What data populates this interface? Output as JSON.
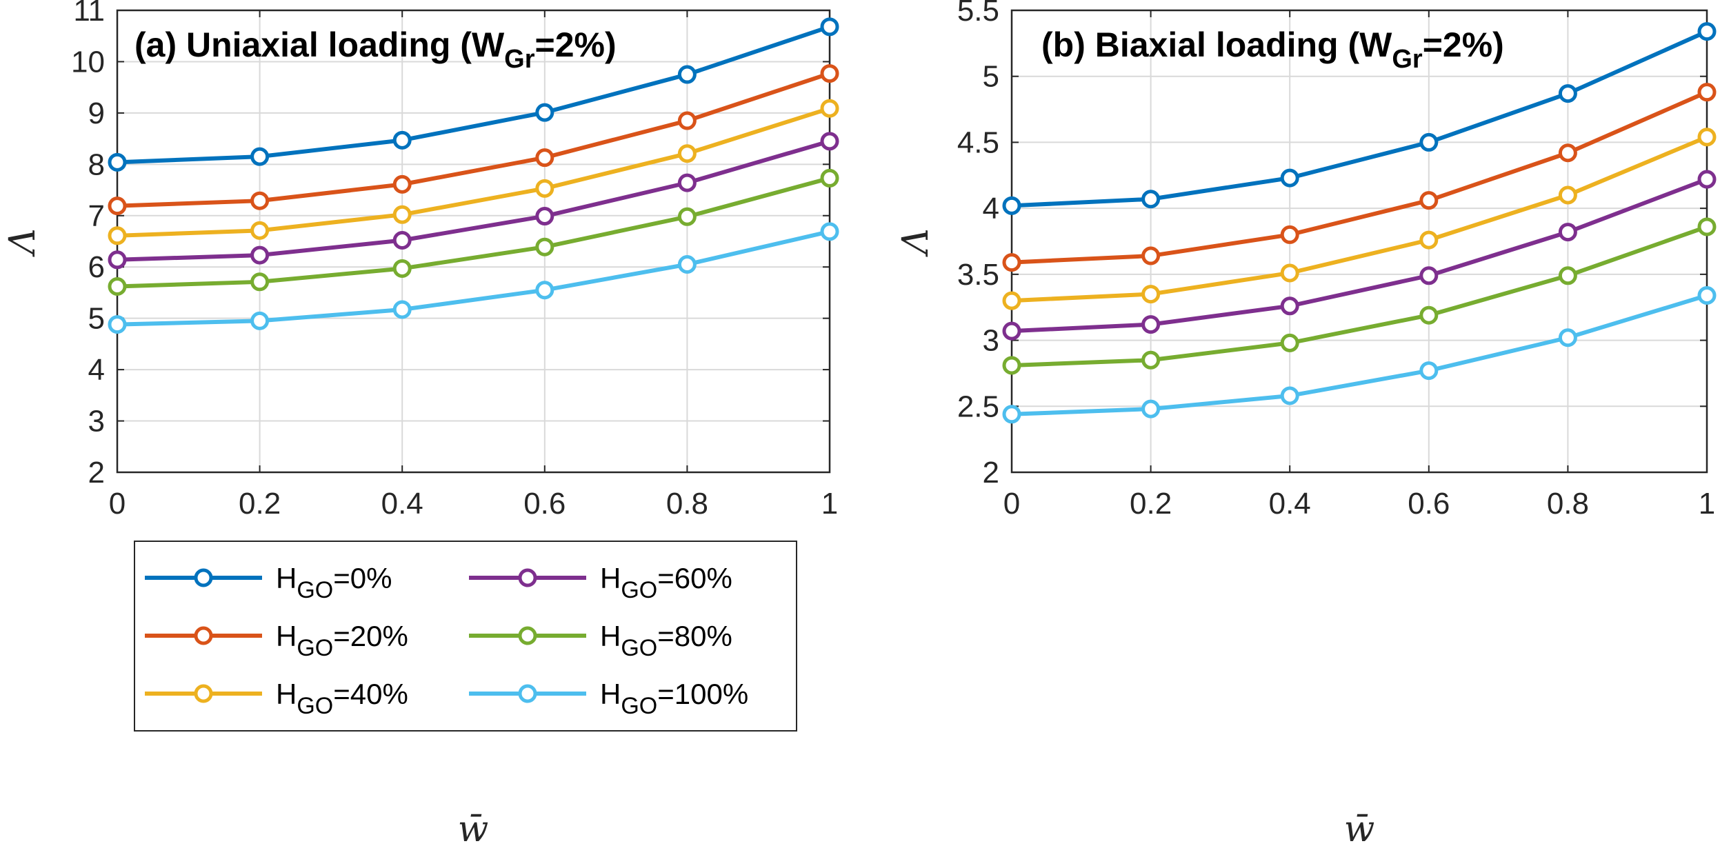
{
  "chart_data": [
    {
      "type": "line",
      "title": "(a) Uniaxial loading (W",
      "title_sub": "Gr",
      "title_end": "=2%)",
      "xlabel": "w̄",
      "ylabel": "Λ",
      "xlim": [
        0,
        1
      ],
      "ylim": [
        2,
        11
      ],
      "xticks": [
        0,
        0.2,
        0.4,
        0.6,
        0.8,
        1
      ],
      "xtick_labels": [
        "0",
        "0.2",
        "0.4",
        "0.6",
        "0.8",
        "1"
      ],
      "yticks": [
        2,
        3,
        4,
        5,
        6,
        7,
        8,
        9,
        10,
        11
      ],
      "ytick_labels": [
        "2",
        "3",
        "4",
        "5",
        "6",
        "7",
        "8",
        "9",
        "10",
        "11"
      ],
      "grid": true,
      "x": [
        0,
        0.2,
        0.4,
        0.6,
        0.8,
        1
      ],
      "series": [
        {
          "name": "H_GO=0%",
          "values": [
            8.04,
            8.15,
            8.47,
            9.01,
            9.75,
            10.68
          ]
        },
        {
          "name": "H_GO=20%",
          "values": [
            7.19,
            7.29,
            7.61,
            8.13,
            8.85,
            9.77
          ]
        },
        {
          "name": "H_GO=40%",
          "values": [
            6.61,
            6.71,
            7.02,
            7.53,
            8.21,
            9.09
          ]
        },
        {
          "name": "H_GO=60%",
          "values": [
            6.14,
            6.23,
            6.52,
            6.99,
            7.64,
            8.45
          ]
        },
        {
          "name": "H_GO=80%",
          "values": [
            5.62,
            5.71,
            5.97,
            6.39,
            6.98,
            7.73
          ]
        },
        {
          "name": "H_GO=100%",
          "values": [
            4.88,
            4.95,
            5.17,
            5.55,
            6.05,
            6.69
          ]
        }
      ],
      "legend": {
        "position": "bottom",
        "entries": [
          {
            "pre": "H",
            "sub": "GO",
            "post": "=0%"
          },
          {
            "pre": "H",
            "sub": "GO",
            "post": "=60%"
          },
          {
            "pre": "H",
            "sub": "GO",
            "post": "=20%"
          },
          {
            "pre": "H",
            "sub": "GO",
            "post": "=80%"
          },
          {
            "pre": "H",
            "sub": "GO",
            "post": "=40%"
          },
          {
            "pre": "H",
            "sub": "GO",
            "post": "=100%"
          }
        ]
      }
    },
    {
      "type": "line",
      "title": "(b) Biaxial loading (W",
      "title_sub": "Gr",
      "title_end": "=2%)",
      "xlabel": "w̄",
      "ylabel": "Λ",
      "xlim": [
        0,
        1
      ],
      "ylim": [
        2,
        5.5
      ],
      "xticks": [
        0,
        0.2,
        0.4,
        0.6,
        0.8,
        1
      ],
      "xtick_labels": [
        "0",
        "0.2",
        "0.4",
        "0.6",
        "0.8",
        "1"
      ],
      "yticks": [
        2,
        2.5,
        3,
        3.5,
        4,
        4.5,
        5,
        5.5
      ],
      "ytick_labels": [
        "2",
        "2.5",
        "3",
        "3.5",
        "4",
        "4.5",
        "5",
        "5.5"
      ],
      "grid": true,
      "x": [
        0,
        0.2,
        0.4,
        0.6,
        0.8,
        1
      ],
      "series": [
        {
          "name": "H_GO=0%",
          "values": [
            4.02,
            4.07,
            4.23,
            4.5,
            4.87,
            5.34
          ]
        },
        {
          "name": "H_GO=20%",
          "values": [
            3.59,
            3.64,
            3.8,
            4.06,
            4.42,
            4.88
          ]
        },
        {
          "name": "H_GO=40%",
          "values": [
            3.3,
            3.35,
            3.51,
            3.76,
            4.1,
            4.54
          ]
        },
        {
          "name": "H_GO=60%",
          "values": [
            3.07,
            3.12,
            3.26,
            3.49,
            3.82,
            4.22
          ]
        },
        {
          "name": "H_GO=80%",
          "values": [
            2.81,
            2.85,
            2.98,
            3.19,
            3.49,
            3.86
          ]
        },
        {
          "name": "H_GO=100%",
          "values": [
            2.44,
            2.48,
            2.58,
            2.77,
            3.02,
            3.34
          ]
        }
      ]
    }
  ],
  "colors": [
    "#0072BD",
    "#D95319",
    "#EDB120",
    "#7E2F8E",
    "#77AC30",
    "#4DBEEE"
  ]
}
